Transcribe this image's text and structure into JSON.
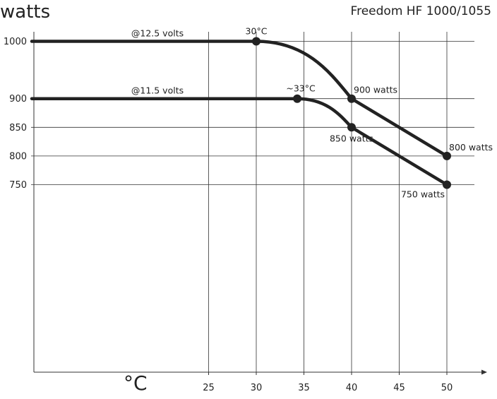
{
  "chart_data": {
    "type": "line",
    "title": "Freedom HF 1000/1055",
    "ylabel": "watts",
    "xlabel": "°C",
    "x_ticks": [
      25,
      30,
      35,
      40,
      45,
      50
    ],
    "y_ticks": [
      1000,
      900,
      850,
      800,
      750
    ],
    "series": [
      {
        "name": "@12.5 volts",
        "points": [
          [
            14.8,
            1000
          ],
          [
            30,
            1000
          ],
          [
            40,
            900
          ],
          [
            50,
            800
          ]
        ],
        "markers": [
          [
            30,
            1000
          ],
          [
            40,
            900
          ],
          [
            50,
            800
          ]
        ]
      },
      {
        "name": "@11.5 volts",
        "points": [
          [
            14.8,
            900
          ],
          [
            34.3,
            900
          ],
          [
            40,
            850
          ],
          [
            50,
            750
          ]
        ],
        "markers": [
          [
            34.3,
            900
          ],
          [
            40,
            850
          ],
          [
            50,
            750
          ]
        ]
      }
    ],
    "annotations": [
      {
        "text": "30°C",
        "x": 30,
        "y": 1000
      },
      {
        "text": "~33°C",
        "x": 34.3,
        "y": 900
      },
      {
        "text": "900 watts",
        "x": 40,
        "y": 900
      },
      {
        "text": "850 watts",
        "x": 40,
        "y": 850
      },
      {
        "text": "800 watts",
        "x": 50,
        "y": 800
      },
      {
        "text": "750 watts",
        "x": 50,
        "y": 750
      }
    ]
  },
  "colors": {
    "line": "#222222",
    "grid": "#333333",
    "background": "#ffffff"
  }
}
